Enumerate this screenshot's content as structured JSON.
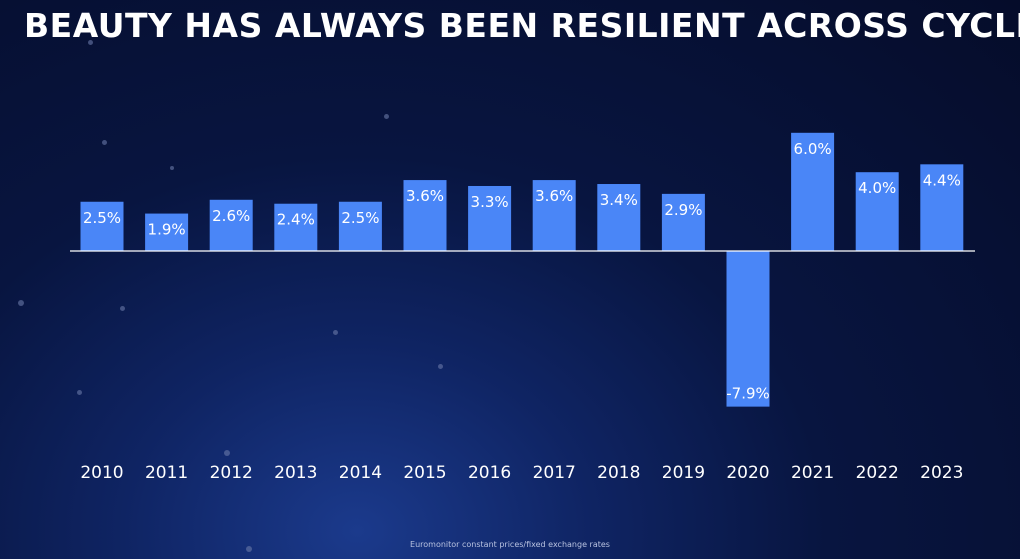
{
  "title": "BEAUTY HAS ALWAYS BEEN RESILIENT ACROSS CYCLES",
  "footnote": "Euromonitor constant prices/fixed exchange rates",
  "colors": {
    "bar": "#4a86f7",
    "label": "#ffffff",
    "axis": "#ffffff",
    "tick": "#ffffff"
  },
  "chart_data": {
    "type": "bar",
    "categories": [
      "2010",
      "2011",
      "2012",
      "2013",
      "2014",
      "2015",
      "2016",
      "2017",
      "2018",
      "2019",
      "2020",
      "2021",
      "2022",
      "2023"
    ],
    "values": [
      2.5,
      1.9,
      2.6,
      2.4,
      2.5,
      3.6,
      3.3,
      3.6,
      3.4,
      2.9,
      -7.9,
      6.0,
      4.0,
      4.4
    ],
    "labels": [
      "2.5%",
      "1.9%",
      "2.6%",
      "2.4%",
      "2.5%",
      "3.6%",
      "3.3%",
      "3.6%",
      "3.4%",
      "2.9%",
      "-7.9%",
      "6.0%",
      "4.0%",
      "4.4%"
    ],
    "title": "BEAUTY HAS ALWAYS BEEN RESILIENT ACROSS CYCLES",
    "xlabel": "",
    "ylabel": "",
    "grid": false,
    "legend": "none"
  }
}
